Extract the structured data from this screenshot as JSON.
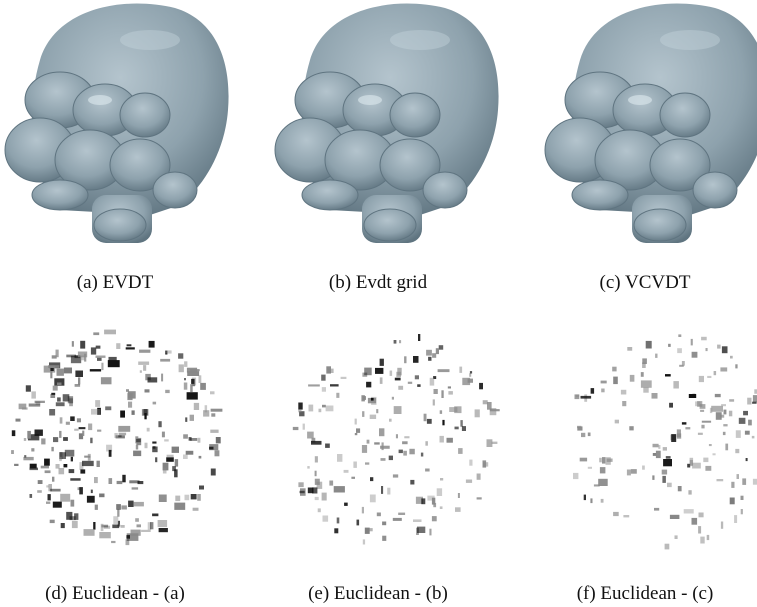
{
  "panels": [
    {
      "caption": "(a) EVDT"
    },
    {
      "caption": "(b) Evdt grid"
    },
    {
      "caption": "(c) VCVDT"
    },
    {
      "caption": "(d) Euclidean - (a)"
    },
    {
      "caption": "(e) Euclidean - (b)"
    },
    {
      "caption": "(f) Euclidean - (c)"
    }
  ]
}
